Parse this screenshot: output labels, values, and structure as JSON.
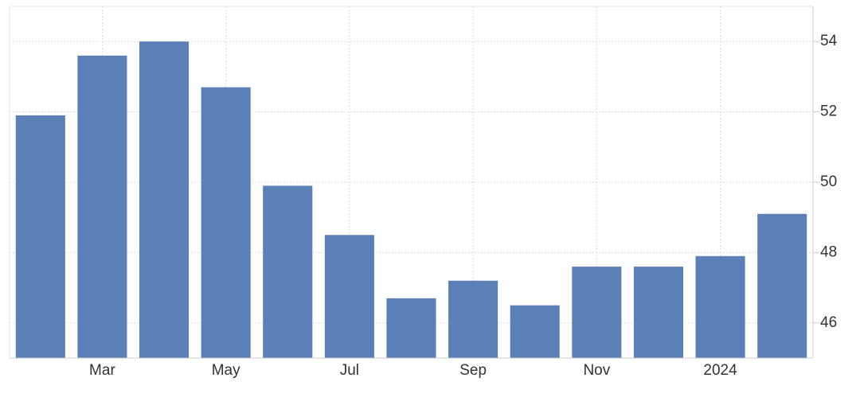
{
  "chart_data": {
    "type": "bar",
    "categories": [
      null,
      "Mar",
      null,
      "May",
      null,
      "Jul",
      null,
      "Sep",
      null,
      "Nov",
      null,
      "2024",
      null
    ],
    "values": [
      51.9,
      53.6,
      54.0,
      52.7,
      49.9,
      48.5,
      46.7,
      47.2,
      46.5,
      47.6,
      47.6,
      47.9,
      49.1
    ],
    "color": "#5b80b8",
    "ylim": [
      45,
      55
    ],
    "yticks": [
      46,
      48,
      50,
      52,
      54
    ],
    "grid": true,
    "y_axis_side": "right"
  }
}
